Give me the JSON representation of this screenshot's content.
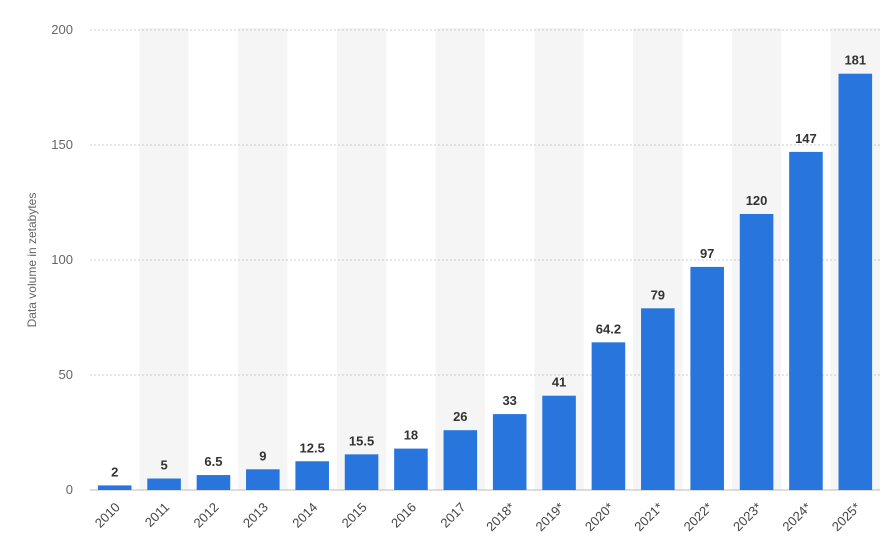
{
  "chart_data": {
    "type": "bar",
    "title": "",
    "xlabel": "",
    "ylabel": "Data volume in zetabytes",
    "categories": [
      "2010",
      "2011",
      "2012",
      "2013",
      "2014",
      "2015",
      "2016",
      "2017",
      "2018*",
      "2019*",
      "2020*",
      "2021*",
      "2022*",
      "2023*",
      "2024*",
      "2025*"
    ],
    "values": [
      2,
      5,
      6.5,
      9,
      12.5,
      15.5,
      18,
      26,
      33,
      41,
      64.2,
      79,
      97,
      120,
      147,
      181
    ],
    "data_labels": [
      "2",
      "5",
      "6.5",
      "9",
      "12.5",
      "15.5",
      "18",
      "26",
      "33",
      "41",
      "64.2",
      "79",
      "97",
      "120",
      "147",
      "181"
    ],
    "yticks": [
      0,
      50,
      100,
      150,
      200
    ],
    "ylim": [
      0,
      200
    ],
    "grid": true,
    "legend": "none",
    "colors": {
      "bar": "#2876dd",
      "grid": "#cccccc",
      "band": "#f5f5f5"
    }
  }
}
